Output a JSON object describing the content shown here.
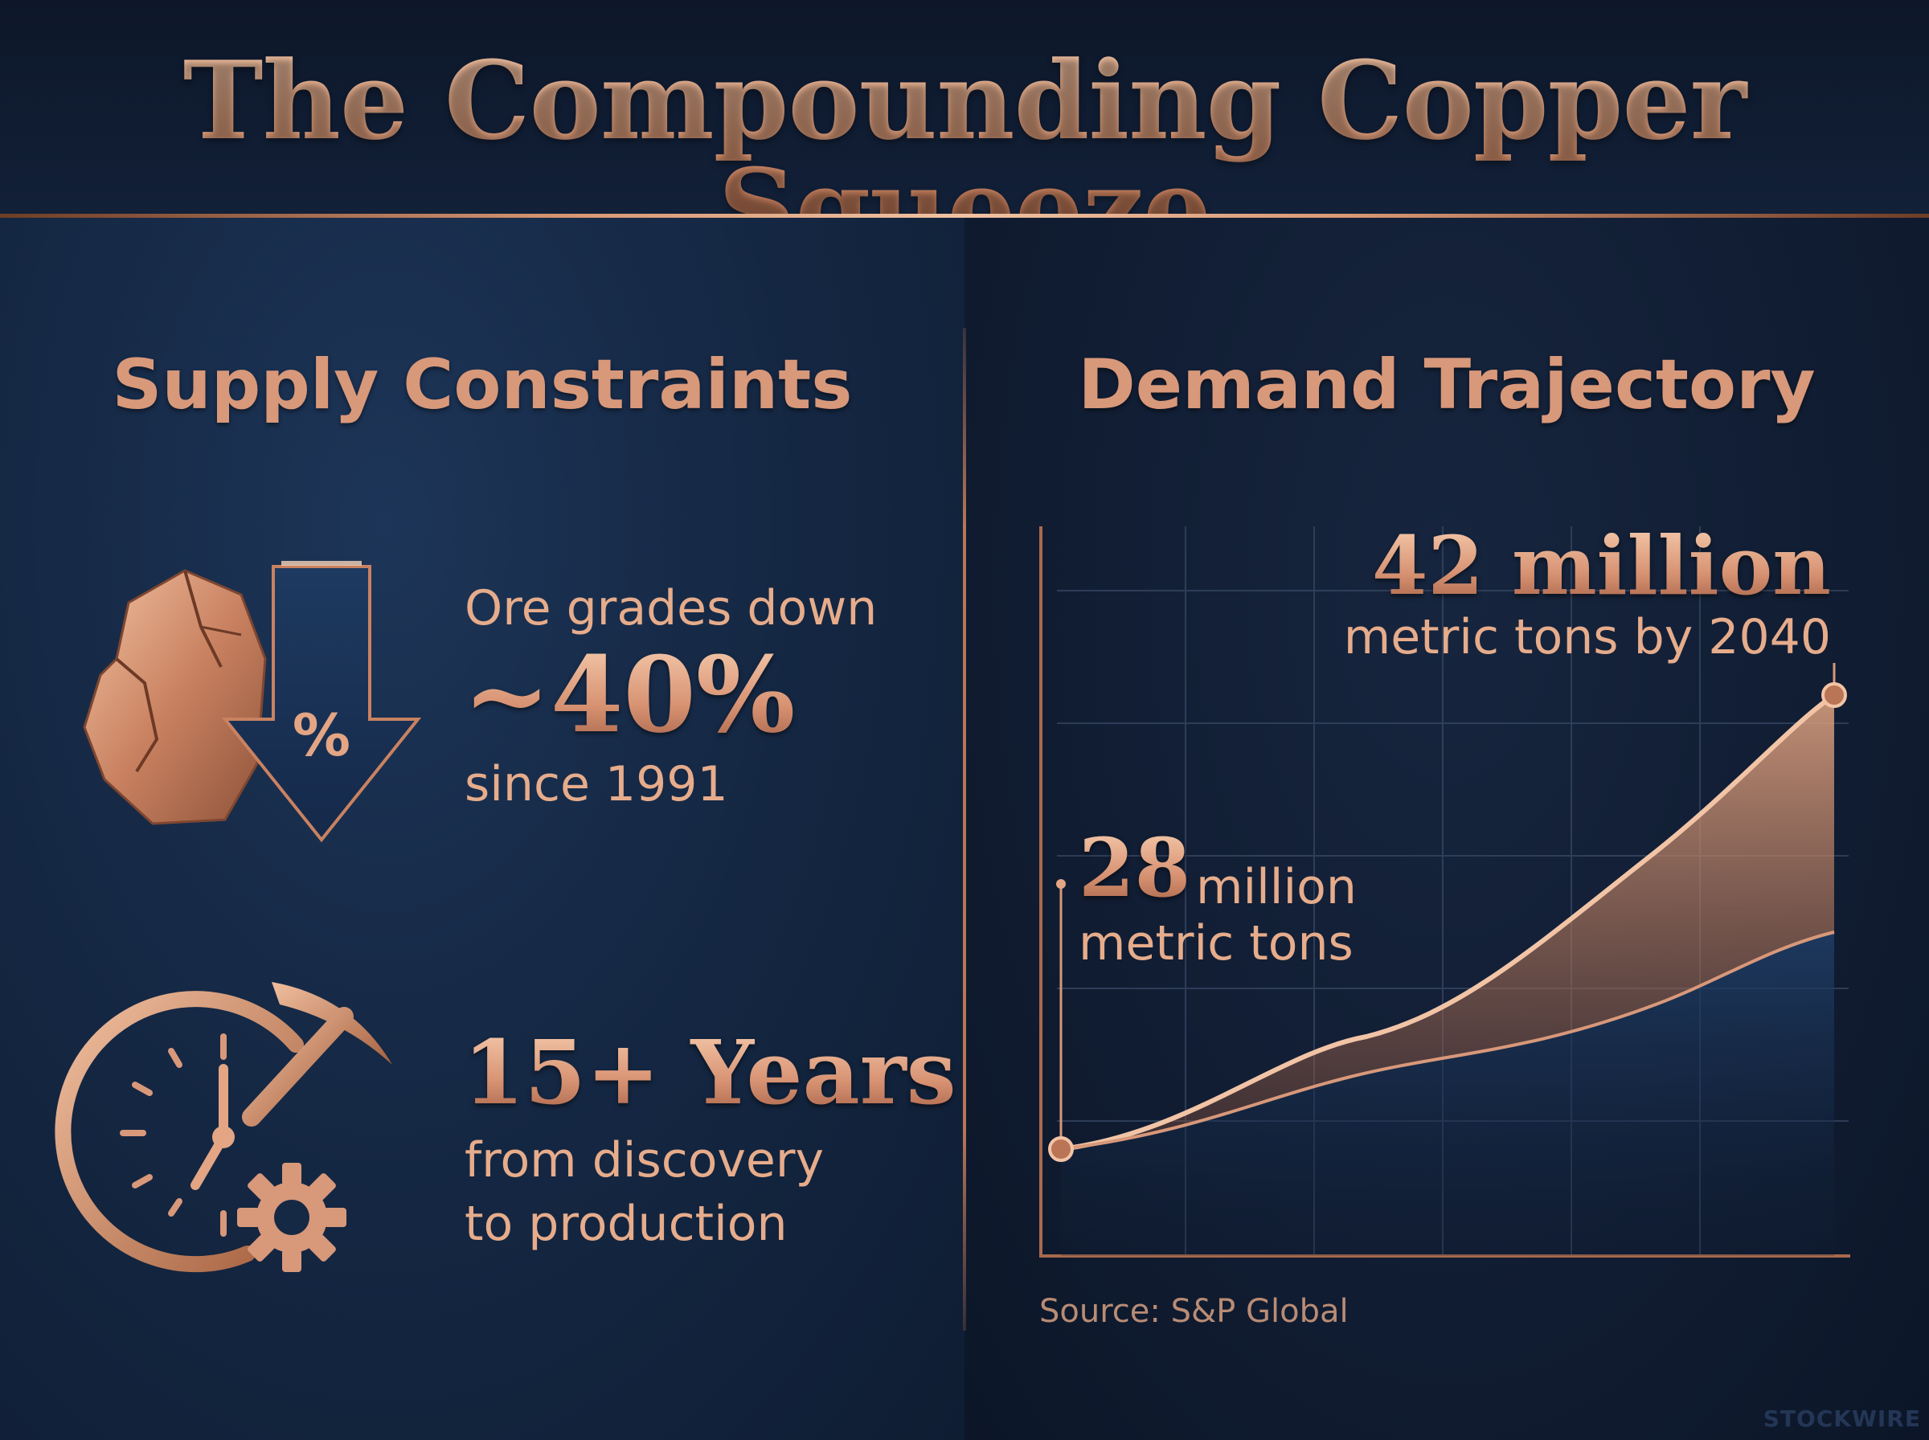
{
  "title": "The Compounding Copper Squeeze",
  "supply": {
    "heading": "Supply Constraints",
    "ore": {
      "line1": "Ore grades down",
      "stat": "~40%",
      "line3": "since 1991",
      "icon_symbol": "%"
    },
    "timeline": {
      "stat": "15+ Years",
      "line2": "from discovery",
      "line3": "to production"
    }
  },
  "demand": {
    "heading": "Demand Trajectory",
    "end_value": "42 million",
    "end_caption": "metric tons by 2040",
    "start_number": "28",
    "start_unit": "million",
    "start_caption": "metric tons",
    "source": "Source: S&P Global"
  },
  "watermark": "STOCKWIRE",
  "colors": {
    "copper": "#d8987a",
    "navy": "#0f1a30"
  }
}
